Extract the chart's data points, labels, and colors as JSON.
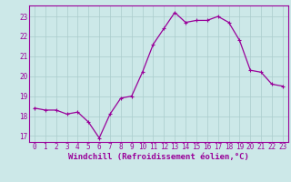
{
  "x": [
    0,
    1,
    2,
    3,
    4,
    5,
    6,
    7,
    8,
    9,
    10,
    11,
    12,
    13,
    14,
    15,
    16,
    17,
    18,
    19,
    20,
    21,
    22,
    23
  ],
  "y": [
    18.4,
    18.3,
    18.3,
    18.1,
    18.2,
    17.7,
    16.9,
    18.1,
    18.9,
    19.0,
    20.2,
    21.6,
    22.4,
    23.2,
    22.7,
    22.8,
    22.8,
    23.0,
    22.7,
    21.8,
    20.3,
    20.2,
    19.6,
    19.5
  ],
  "line_color": "#990099",
  "marker": "+",
  "marker_size": 3,
  "marker_lw": 0.8,
  "line_width": 0.9,
  "bg_color": "#cce8e8",
  "grid_color": "#aacccc",
  "xlabel": "Windchill (Refroidissement éolien,°C)",
  "ylim": [
    16.7,
    23.55
  ],
  "yticks": [
    17,
    18,
    19,
    20,
    21,
    22,
    23
  ],
  "xticks": [
    0,
    1,
    2,
    3,
    4,
    5,
    6,
    7,
    8,
    9,
    10,
    11,
    12,
    13,
    14,
    15,
    16,
    17,
    18,
    19,
    20,
    21,
    22,
    23
  ],
  "tick_color": "#990099",
  "tick_fontsize": 5.5,
  "xlabel_fontsize": 6.5,
  "xlabel_color": "#990099",
  "spine_color": "#990099"
}
